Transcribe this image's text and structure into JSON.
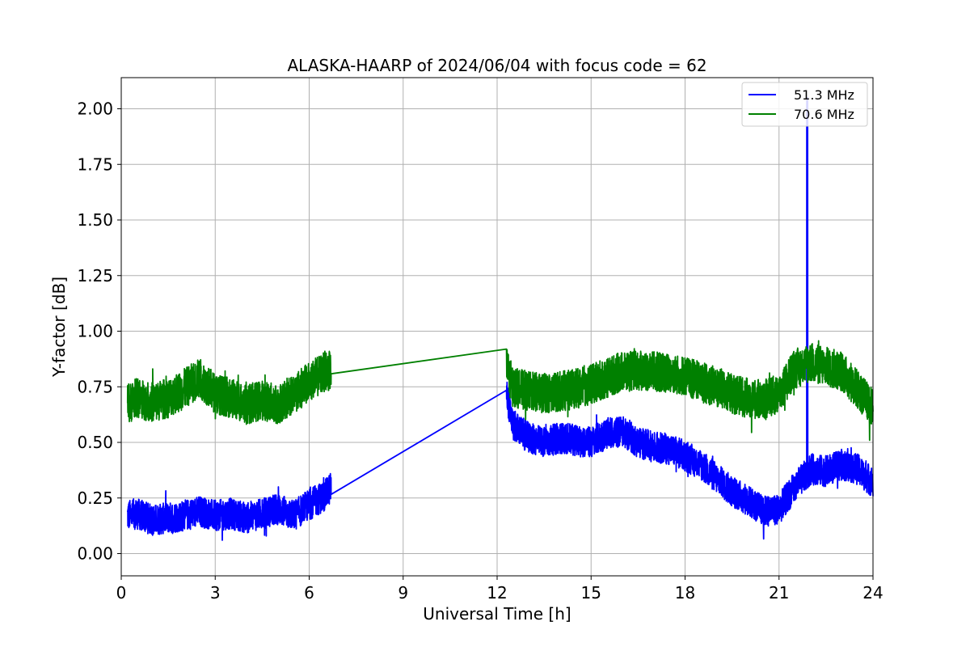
{
  "chart_data": {
    "type": "line",
    "title": "ALASKA-HAARP of 2024/06/04 with focus code = 62",
    "xlabel": "Universal Time [h]",
    "ylabel": "Y-factor [dB]",
    "xlim": [
      0,
      24
    ],
    "ylim": [
      -0.1,
      2.14
    ],
    "xticks": [
      0,
      3,
      6,
      9,
      12,
      15,
      18,
      21,
      24
    ],
    "xtick_labels": [
      "0",
      "3",
      "6",
      "9",
      "12",
      "15",
      "18",
      "21",
      "24"
    ],
    "yticks": [
      0.0,
      0.25,
      0.5,
      0.75,
      1.0,
      1.25,
      1.5,
      1.75,
      2.0
    ],
    "ytick_labels": [
      "0.00",
      "0.25",
      "0.50",
      "0.75",
      "1.00",
      "1.25",
      "1.50",
      "1.75",
      "2.00"
    ],
    "grid": true,
    "legend_position": "top-right",
    "series": [
      {
        "name": "51.3 MHz",
        "color": "#0000ff",
        "x": [
          0.2,
          0.5,
          1.0,
          1.5,
          2.0,
          2.5,
          3.0,
          3.5,
          4.0,
          4.5,
          5.0,
          5.5,
          6.0,
          6.5,
          6.7,
          12.3,
          12.5,
          13.0,
          13.5,
          14.0,
          14.5,
          15.0,
          15.5,
          16.0,
          16.5,
          17.0,
          17.5,
          18.0,
          18.5,
          19.0,
          19.5,
          20.0,
          20.5,
          21.0,
          21.5,
          21.9,
          22.0,
          22.5,
          23.0,
          23.5,
          24.0
        ],
        "y": [
          0.17,
          0.18,
          0.15,
          0.16,
          0.17,
          0.19,
          0.17,
          0.18,
          0.16,
          0.18,
          0.2,
          0.17,
          0.22,
          0.26,
          0.3,
          0.72,
          0.58,
          0.52,
          0.5,
          0.52,
          0.51,
          0.5,
          0.54,
          0.55,
          0.5,
          0.48,
          0.47,
          0.44,
          0.4,
          0.34,
          0.28,
          0.24,
          0.19,
          0.2,
          0.3,
          0.36,
          0.38,
          0.37,
          0.4,
          0.38,
          0.32
        ],
        "noise": 0.07,
        "peak": {
          "x": 21.9,
          "y": 2.05
        }
      },
      {
        "name": "70.6 MHz",
        "color": "#008000",
        "x": [
          0.2,
          0.5,
          1.0,
          1.5,
          2.0,
          2.5,
          3.0,
          3.5,
          4.0,
          4.5,
          5.0,
          5.5,
          6.0,
          6.5,
          6.7,
          12.3,
          12.5,
          13.0,
          13.5,
          14.0,
          14.5,
          15.0,
          15.5,
          16.0,
          16.5,
          17.0,
          17.5,
          18.0,
          18.5,
          19.0,
          19.5,
          20.0,
          20.5,
          21.0,
          21.5,
          22.0,
          22.5,
          23.0,
          23.5,
          24.0
        ],
        "y": [
          0.67,
          0.7,
          0.68,
          0.7,
          0.74,
          0.79,
          0.72,
          0.7,
          0.67,
          0.69,
          0.67,
          0.72,
          0.77,
          0.82,
          0.82,
          0.84,
          0.75,
          0.73,
          0.72,
          0.73,
          0.74,
          0.76,
          0.79,
          0.82,
          0.82,
          0.82,
          0.81,
          0.8,
          0.77,
          0.75,
          0.72,
          0.7,
          0.69,
          0.72,
          0.83,
          0.86,
          0.84,
          0.82,
          0.74,
          0.65
        ],
        "noise": 0.09
      }
    ]
  }
}
